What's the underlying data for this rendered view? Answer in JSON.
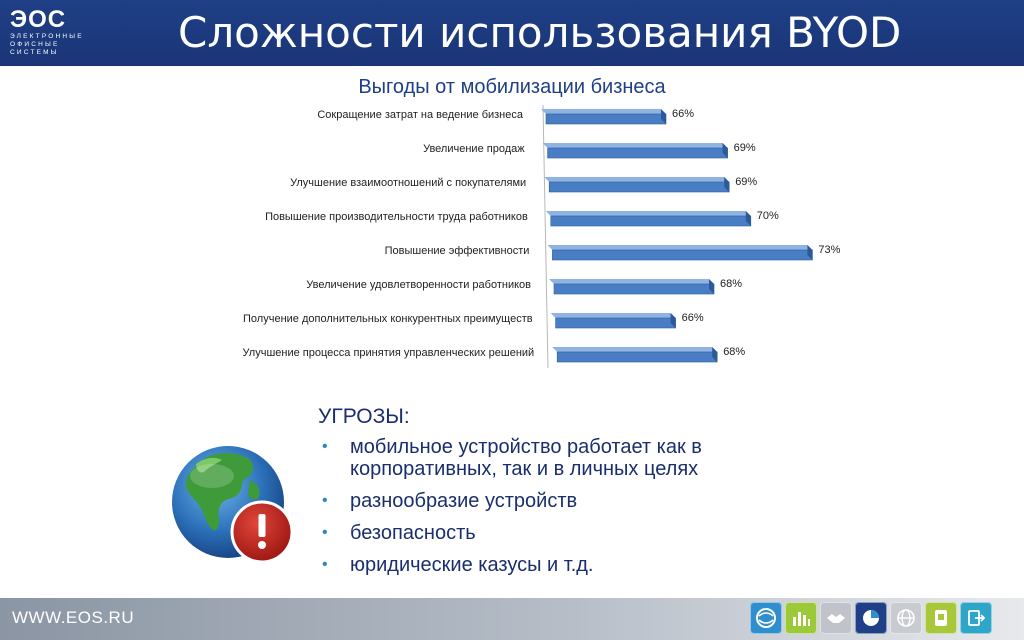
{
  "header": {
    "logo_mark": "ЭОС",
    "logo_lines": [
      "ЭЛЕКТРОННЫЕ",
      "ОФИСНЫЕ",
      "СИСТЕМЫ"
    ],
    "title": "Сложности использования BYOD"
  },
  "chart_data": {
    "type": "bar",
    "orientation": "horizontal",
    "title": "Выгоды от мобилизации бизнеса",
    "categories": [
      "Сокращение затрат на ведение бизнеса",
      "Увеличение продаж",
      "Улучшение взаимоотношений с покупателями",
      "Повышение производительности труда работников",
      "Повышение эффективности",
      "Увеличение удовлетворенности работников",
      "Получение дополнительных конкурентных преимуществ",
      "Улучшение процесса принятия управленческих решений"
    ],
    "values": [
      66,
      69,
      69,
      70,
      73,
      68,
      66,
      68
    ],
    "data_labels": [
      "66%",
      "69%",
      "69%",
      "70%",
      "73%",
      "68%",
      "66%",
      "68%"
    ],
    "unit": "%",
    "xlim": [
      60,
      74
    ],
    "bar_color": "#4a7ec4"
  },
  "threats": {
    "heading": "УГРОЗЫ:",
    "items": [
      "мобильное устройство работает как в корпоративных, так и в личных целях",
      "разнообразие устройств",
      "безопасность",
      "юридические казусы и т.д."
    ]
  },
  "footer": {
    "url": "WWW.EOS.RU",
    "icons": [
      "globe-swirl-icon",
      "bar-chart-icon",
      "handshake-icon",
      "pie-chart-icon",
      "globe-grid-icon",
      "document-icon",
      "exit-icon"
    ]
  },
  "colors": {
    "header_bg": "#1f3f86",
    "accent_text": "#1f3f86",
    "bullet": "#2b86c5",
    "bar": "#4a7ec4"
  }
}
